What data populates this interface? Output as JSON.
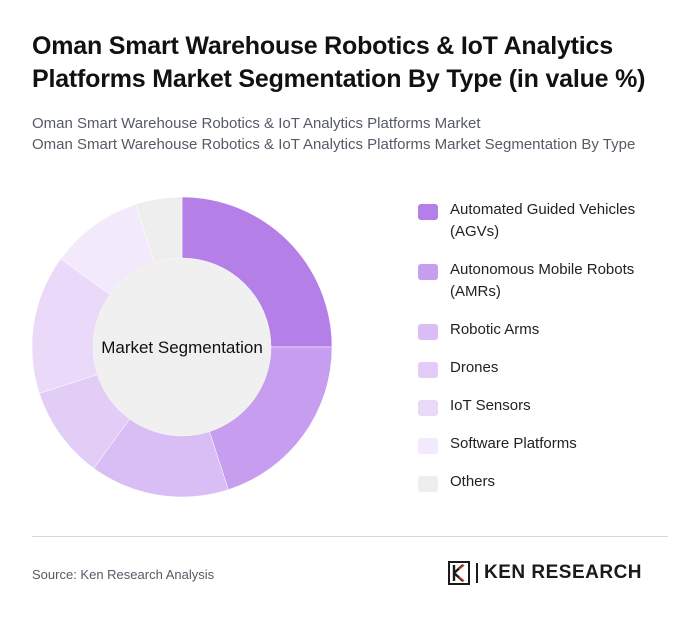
{
  "header": {
    "title": "Oman Smart Warehouse Robotics & IoT Analytics Platforms Market Segmentation By Type (in value %)",
    "subtitle_line1": "Oman Smart Warehouse Robotics & IoT Analytics Platforms Market",
    "subtitle_line2": "Oman Smart Warehouse Robotics & IoT Analytics Platforms Market Segmentation By Type"
  },
  "chart_data": {
    "type": "pie",
    "title": "Oman Smart Warehouse Robotics & IoT Analytics Platforms Market Segmentation By Type (in value %)",
    "center_label": "Market Segmentation",
    "donut": true,
    "legend_position": "right",
    "categories": [
      "Automated Guided Vehicles (AGVs)",
      "Autonomous Mobile Robots (AMRs)",
      "Robotic Arms",
      "Drones",
      "IoT Sensors",
      "Software Platforms",
      "Others"
    ],
    "values": [
      25,
      20,
      15,
      10,
      15,
      10,
      5
    ],
    "colors": [
      "#b57fe8",
      "#c79df0",
      "#d9bdf5",
      "#e2cdf7",
      "#ead9f9",
      "#f2eafb",
      "#eeeeee"
    ]
  },
  "footer": {
    "source": "Source: Ken Research Analysis",
    "logo_text": "KEN RESEARCH"
  }
}
